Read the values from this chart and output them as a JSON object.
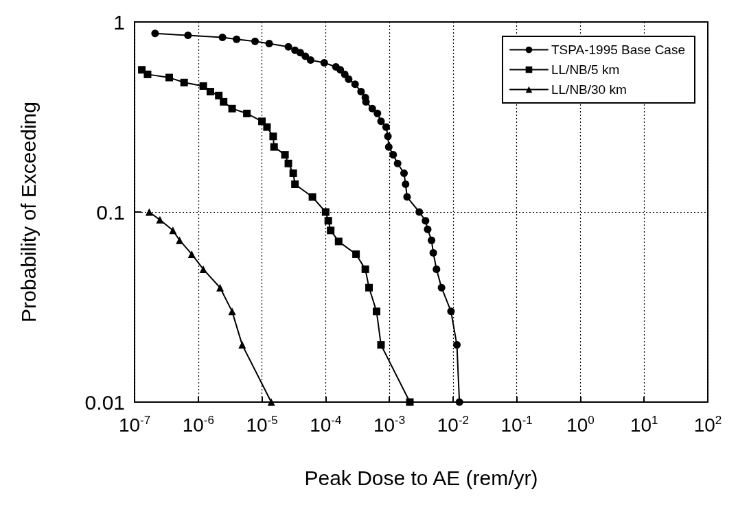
{
  "chart_data": {
    "type": "line",
    "xlabel": "Peak Dose to AE (rem/yr)",
    "ylabel": "Probability of Exceeding",
    "log": "xy",
    "grid": true,
    "legend": "top right",
    "line_style": "solid",
    "xlim": [
      1e-07,
      100
    ],
    "ylim": [
      0.01,
      1
    ],
    "xticks": [
      {
        "value": 1e-07,
        "label": "10$^{-7}$"
      },
      {
        "value": 1e-06,
        "label": "10$^{-6}$"
      },
      {
        "value": 1e-05,
        "label": "10$^{-5}$"
      },
      {
        "value": 0.0001,
        "label": "10$^{-4}$"
      },
      {
        "value": 0.001,
        "label": "10$^{-3}$"
      },
      {
        "value": 0.01,
        "label": "10$^{-2}$"
      },
      {
        "value": 0.1,
        "label": "10$^{-1}$"
      },
      {
        "value": 1,
        "label": "10$^{0}$"
      },
      {
        "value": 10,
        "label": "10$^{1}$"
      },
      {
        "value": 100,
        "label": "10$^{2}$"
      }
    ],
    "yticks": [
      0.01,
      0.1,
      1
    ],
    "series": [
      {
        "name": "TSPA-1995 Base Case",
        "color": "#000000",
        "marker": "circle",
        "x": [
          2.1e-07,
          6.9e-07,
          2.4e-06,
          4e-06,
          7.8e-06,
          1.3e-05,
          2.6e-05,
          3.3e-05,
          4e-05,
          4.8e-05,
          5.8e-05,
          9.5e-05,
          0.000145,
          0.00017,
          0.0002,
          0.00023,
          0.00029,
          0.00036,
          0.00042,
          0.00043,
          0.00054,
          0.00065,
          0.00074,
          0.00089,
          0.00095,
          0.00098,
          0.00115,
          0.00135,
          0.0017,
          0.0018,
          0.0019,
          0.00295,
          0.0037,
          0.004,
          0.0046,
          0.0049,
          0.0055,
          0.0066,
          0.0093,
          0.0115,
          0.0126
        ],
        "values": [
          0.87,
          0.85,
          0.83,
          0.81,
          0.79,
          0.77,
          0.74,
          0.71,
          0.69,
          0.66,
          0.63,
          0.61,
          0.58,
          0.56,
          0.53,
          0.5,
          0.47,
          0.43,
          0.4,
          0.38,
          0.35,
          0.33,
          0.3,
          0.28,
          0.25,
          0.22,
          0.2,
          0.18,
          0.16,
          0.14,
          0.12,
          0.1,
          0.09,
          0.081,
          0.071,
          0.061,
          0.05,
          0.04,
          0.03,
          0.02,
          0.01
        ]
      },
      {
        "name": "LL/NB/5 km",
        "color": "#000000",
        "marker": "square",
        "x": [
          1.3e-07,
          1.6e-07,
          3.5e-07,
          6e-07,
          1.2e-06,
          1.55e-06,
          2.1e-06,
          2.5e-06,
          3.4e-06,
          5.8e-06,
          1e-05,
          1.2e-05,
          1.5e-05,
          1.55e-05,
          2.3e-05,
          2.6e-05,
          3.1e-05,
          3.3e-05,
          6.2e-05,
          0.0001,
          0.00011,
          0.00012,
          0.00016,
          0.0003,
          0.00042,
          0.00048,
          0.00063,
          0.00074,
          0.0021
        ],
        "values": [
          0.56,
          0.53,
          0.51,
          0.48,
          0.46,
          0.43,
          0.41,
          0.38,
          0.35,
          0.33,
          0.3,
          0.28,
          0.25,
          0.22,
          0.2,
          0.18,
          0.16,
          0.14,
          0.12,
          0.1,
          0.09,
          0.08,
          0.07,
          0.06,
          0.05,
          0.04,
          0.03,
          0.02,
          0.01
        ]
      },
      {
        "name": "LL/NB/30 km",
        "color": "#000000",
        "marker": "triangle",
        "x": [
          1.7e-07,
          2.5e-07,
          4e-07,
          5.1e-07,
          7.9e-07,
          1.2e-06,
          2.2e-06,
          3.4e-06,
          4.9e-06,
          1.4e-05
        ],
        "values": [
          0.1,
          0.091,
          0.08,
          0.071,
          0.06,
          0.05,
          0.04,
          0.03,
          0.02,
          0.01
        ]
      }
    ]
  }
}
